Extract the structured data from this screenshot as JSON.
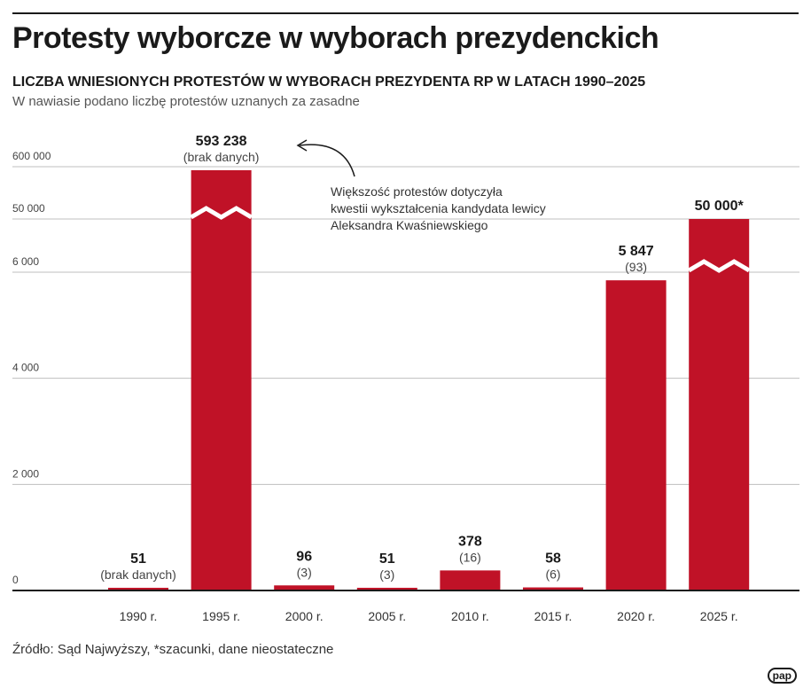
{
  "header": {
    "title": "Protesty wyborcze w wyborach prezydenckich",
    "subtitle": "LICZBA WNIESIONYCH PROTESTÓW W WYBORACH PREZYDENTA RP W LATACH 1990–2025",
    "note": "W nawiasie podano liczbę protestów uznanych za zasadne"
  },
  "footer": {
    "source": "Źródło: Sąd Najwyższy, *szacunki, dane nieostateczne",
    "logo": "pap"
  },
  "colors": {
    "bar": "#c01227",
    "grid": "#bfbfbf",
    "text": "#1a1a1a"
  },
  "chart_data": {
    "type": "bar",
    "title": "LICZBA WNIESIONYCH PROTESTÓW W WYBORACH PREZYDENTA RP W LATACH 1990–2025",
    "categories": [
      "1990 r.",
      "1995 r.",
      "2000 r.",
      "2005 r.",
      "2010 r.",
      "2015 r.",
      "2020 r.",
      "2025 r."
    ],
    "values": [
      51,
      593238,
      96,
      51,
      378,
      58,
      5847,
      50000
    ],
    "value_labels": [
      "51",
      "593 238",
      "96",
      "51",
      "378",
      "58",
      "5 847",
      "50 000*"
    ],
    "secondary_labels": [
      "(brak danych)",
      "(brak danych)",
      "(3)",
      "(3)",
      "(16)",
      "(6)",
      "(93)",
      ""
    ],
    "yticks": [
      "0",
      "2 000",
      "4 000",
      "6 000",
      "50 000",
      "600 000"
    ],
    "ylim": [
      0,
      600000
    ],
    "axis_breaks": true,
    "grid": true,
    "annotation": {
      "lines": [
        "Większość protestów dotyczyła",
        "kwestii wykształcenia kandydata lewicy",
        "Aleksandra Kwaśniewskiego"
      ],
      "target": "1995 r."
    }
  }
}
